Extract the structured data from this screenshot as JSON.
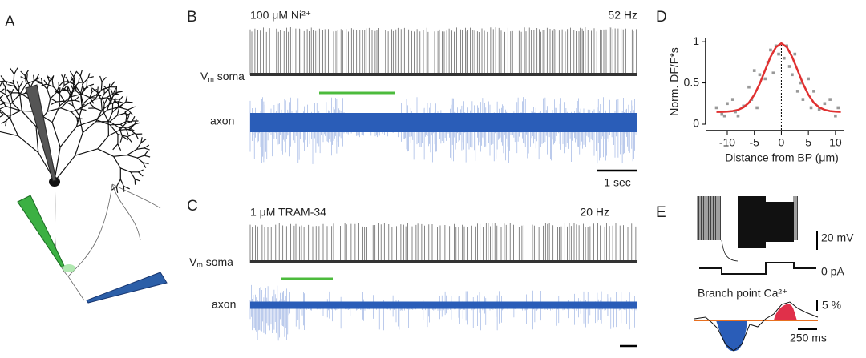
{
  "panels": {
    "a": "A",
    "b": "B",
    "c": "C",
    "d": "D",
    "e": "E"
  },
  "panel_b": {
    "condition": "100 μM Ni²⁺",
    "rate": "52 Hz",
    "soma_v": "V",
    "soma_sub": "m",
    "soma_rest": " soma",
    "axon": "axon",
    "scale_bar": "1 sec"
  },
  "panel_c": {
    "condition": "1 μM TRAM-34",
    "rate": "20 Hz",
    "soma_v": "V",
    "soma_sub": "m",
    "soma_rest": " soma",
    "axon": "axon"
  },
  "panel_e": {
    "scale_v": "20 mV",
    "current": "0 pA",
    "ca_title": "Branch point Ca²⁺",
    "scale_pct": "5 %",
    "scale_t": "250 ms"
  },
  "chart_data": {
    "type": "scatter",
    "xlabel": "Distance from BP (μm)",
    "ylabel": "Norm. DF/F*s",
    "xlim": [
      -14,
      11.5
    ],
    "ylim": [
      0,
      1.05
    ],
    "xticks": [
      -10,
      -5,
      0,
      5,
      10
    ],
    "yticks": [
      0,
      0.5,
      1
    ],
    "color": "#999999",
    "x": [
      -12,
      -11,
      -10.5,
      -10,
      -9,
      -8.5,
      -8,
      -7,
      -6,
      -5.5,
      -5,
      -4.5,
      -4,
      -3,
      -2.5,
      -2,
      -1.5,
      -1,
      -0.5,
      0.5,
      1,
      1.5,
      2,
      2.5,
      3,
      3.5,
      4,
      5,
      5.5,
      6,
      7,
      8,
      9,
      10,
      10.5
    ],
    "values": [
      0.2,
      0.12,
      0.1,
      0.25,
      0.3,
      0.15,
      0.1,
      0.22,
      0.45,
      0.3,
      0.65,
      0.2,
      0.6,
      0.55,
      0.75,
      0.9,
      0.62,
      0.95,
      0.85,
      0.8,
      0.95,
      0.7,
      0.6,
      0.85,
      0.4,
      0.5,
      0.3,
      0.55,
      0.2,
      0.4,
      0.18,
      0.25,
      0.3,
      0.1,
      0.2
    ],
    "fit_color": "#e03030",
    "fit_x": [
      -12,
      -11,
      -10,
      -9,
      -8,
      -7,
      -6,
      -5,
      -4,
      -3,
      -2,
      -1,
      0,
      1,
      2,
      3,
      4,
      5,
      6,
      7,
      8,
      9,
      10,
      11
    ],
    "fit_values": [
      0.15,
      0.15,
      0.153,
      0.159,
      0.174,
      0.205,
      0.262,
      0.357,
      0.491,
      0.654,
      0.815,
      0.935,
      0.98,
      0.935,
      0.815,
      0.654,
      0.491,
      0.357,
      0.262,
      0.205,
      0.174,
      0.159,
      0.153,
      0.15
    ]
  }
}
